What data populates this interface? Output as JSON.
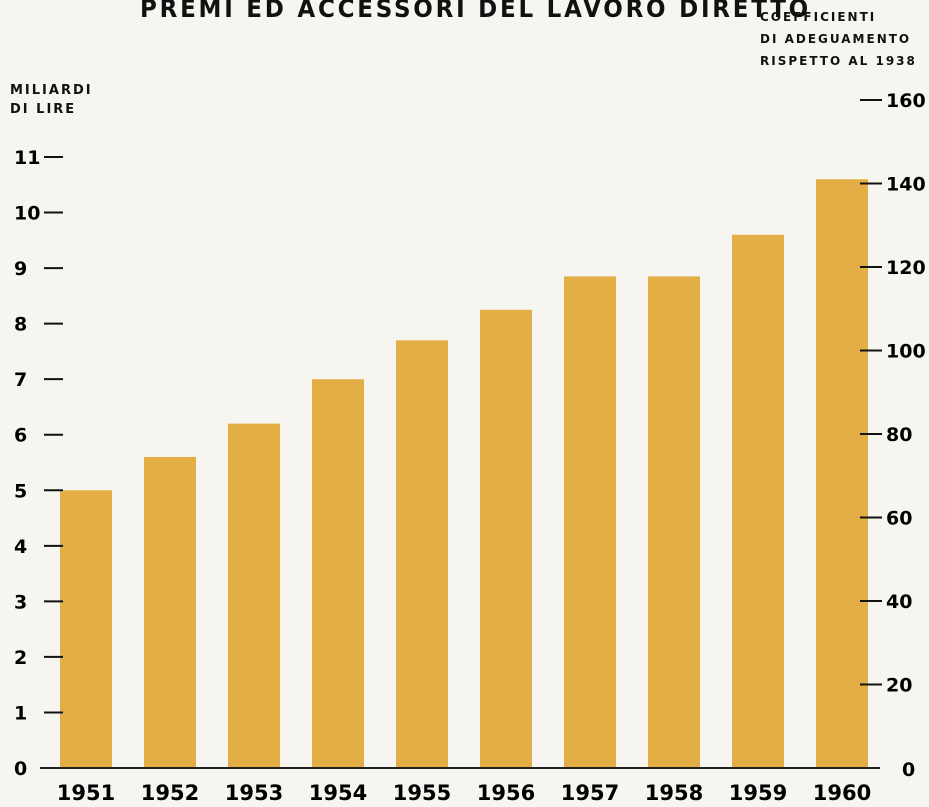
{
  "chart_data": {
    "type": "bar",
    "title": "PREMI ED ACCESSORI DEL LAVORO DIRETTO",
    "y_left_label": [
      "MILIARDI",
      "DI LIRE"
    ],
    "y_right_label": [
      "COEFFICIENTI",
      "DI ADEGUAMENTO",
      "RISPETTO AL 1938"
    ],
    "categories": [
      "1951",
      "1952",
      "1953",
      "1954",
      "1955",
      "1956",
      "1957",
      "1958",
      "1959",
      "1960"
    ],
    "values": [
      5.0,
      5.6,
      6.2,
      7.0,
      7.7,
      8.25,
      8.85,
      8.85,
      9.6,
      10.6
    ],
    "y_left_ticks": [
      "0",
      "1",
      "2",
      "3",
      "4",
      "5",
      "6",
      "7",
      "8",
      "9",
      "10",
      "11"
    ],
    "y_right_ticks": [
      "0",
      "20",
      "40",
      "60",
      "80",
      "100",
      "120",
      "140",
      "160"
    ],
    "ylim": [
      0,
      11
    ],
    "y2lim": [
      0,
      160
    ],
    "grid": false,
    "bar_color": "#e4ae47"
  }
}
